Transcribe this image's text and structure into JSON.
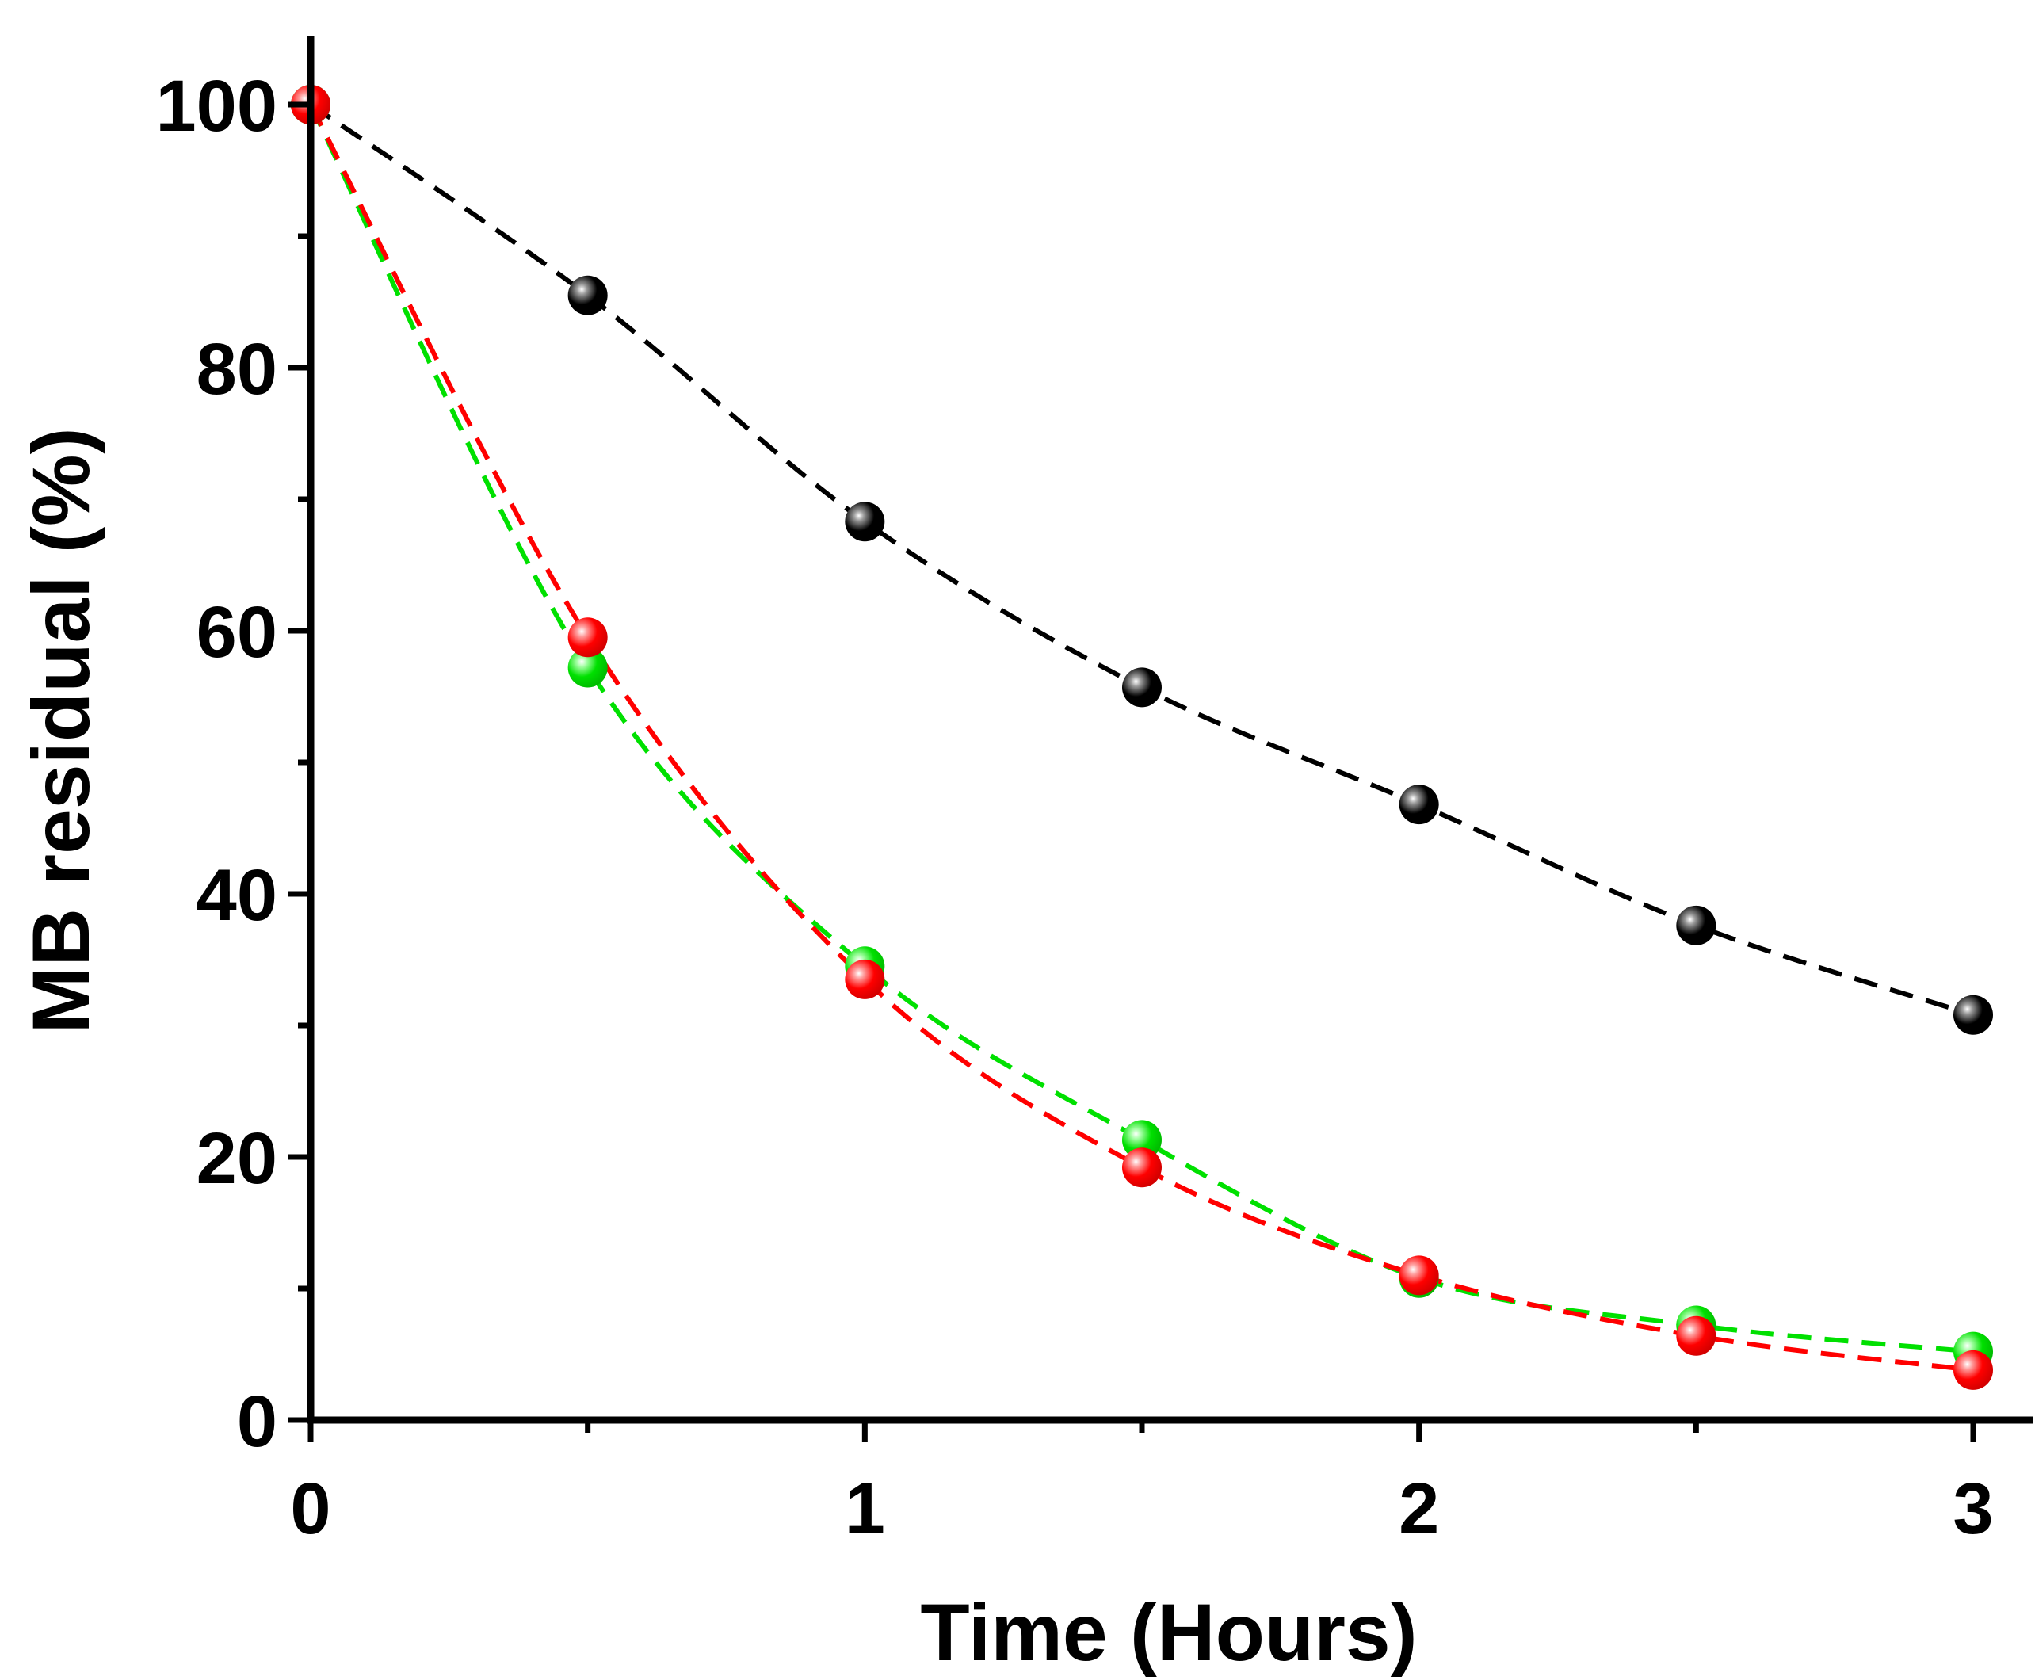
{
  "chart_data": {
    "type": "scatter",
    "title": "",
    "xlabel": "Time (Hours)",
    "ylabel": "MB residual (%)",
    "xlim": [
      0,
      3.07
    ],
    "ylim": [
      0,
      105
    ],
    "xticks": [
      0,
      1,
      2,
      3
    ],
    "yticks": [
      0,
      20,
      40,
      60,
      80,
      100
    ],
    "x_tick_labels": [
      "0",
      "1",
      "2",
      "3"
    ],
    "y_tick_labels": [
      "0",
      "20",
      "40",
      "60",
      "80",
      "100"
    ],
    "grid": false,
    "legend": "none",
    "x": [
      0,
      0.5,
      1,
      1.5,
      2,
      2.5,
      3
    ],
    "series": [
      {
        "name": "black",
        "color": "#000000",
        "line_style": "dashed fit",
        "values": [
          100,
          85.5,
          68.3,
          55.7,
          46.8,
          37.6,
          30.8
        ]
      },
      {
        "name": "green",
        "color": "#00e000",
        "line_style": "dashed fit",
        "values": [
          100,
          57.2,
          34.5,
          21.3,
          10.8,
          7.2,
          5.2
        ]
      },
      {
        "name": "red",
        "color": "#ff0000",
        "line_style": "dashed fit",
        "values": [
          100,
          59.5,
          33.5,
          19.2,
          11.0,
          6.4,
          3.8
        ]
      }
    ]
  }
}
